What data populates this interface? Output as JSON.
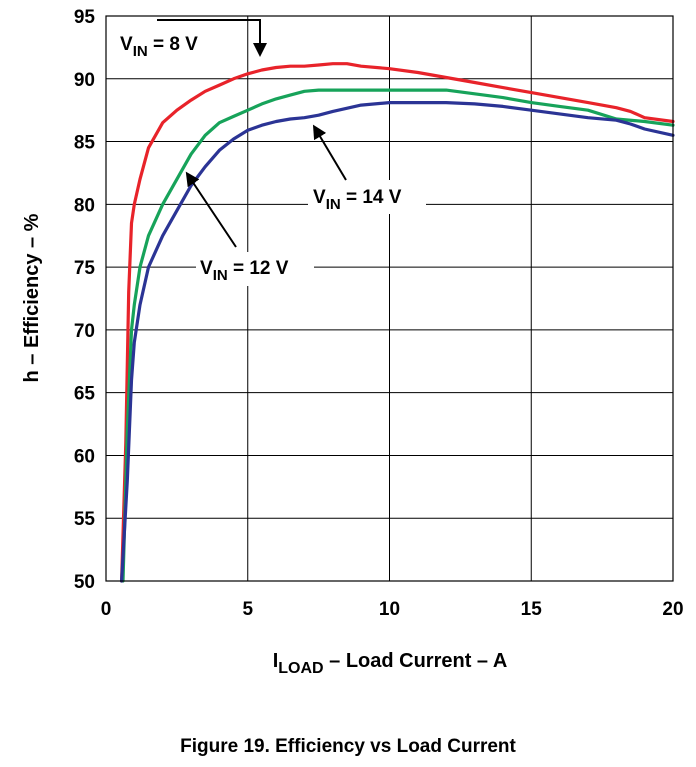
{
  "caption": "Figure 19. Efficiency vs Load Current",
  "chart_data": {
    "type": "line",
    "title": "Efficiency vs Load Current",
    "xlabel": {
      "main": "I",
      "sub": "LOAD",
      "rest": " – Load Current – A"
    },
    "ylabel": "h – Efficiency – %",
    "xlim": [
      0,
      20
    ],
    "ylim": [
      50,
      95
    ],
    "xticks": [
      0,
      5,
      10,
      15,
      20
    ],
    "yticks": [
      50,
      55,
      60,
      65,
      70,
      75,
      80,
      85,
      90,
      95
    ],
    "grid": true,
    "series": [
      {
        "name": "VIN = 8 V",
        "color": "#e8232a",
        "x": [
          0.55,
          0.7,
          0.8,
          0.9,
          1.0,
          1.2,
          1.5,
          2.0,
          2.5,
          3.0,
          3.5,
          4.0,
          4.5,
          5.0,
          5.5,
          6.0,
          6.5,
          7.0,
          7.5,
          8.0,
          8.5,
          9.0,
          10.0,
          11.0,
          12.0,
          13.0,
          14.0,
          15.0,
          16.0,
          17.0,
          18.0,
          18.5,
          19.0,
          20.0
        ],
        "y": [
          50,
          61,
          73,
          78.5,
          80,
          82,
          84.5,
          86.5,
          87.5,
          88.3,
          89,
          89.5,
          90,
          90.4,
          90.7,
          90.9,
          91,
          91,
          91.1,
          91.2,
          91.2,
          91,
          90.8,
          90.5,
          90.1,
          89.7,
          89.3,
          88.9,
          88.5,
          88.1,
          87.7,
          87.4,
          86.9,
          86.6
        ]
      },
      {
        "name": "VIN = 12 V",
        "color": "#17a35a",
        "x": [
          0.6,
          0.75,
          0.9,
          1.0,
          1.2,
          1.5,
          2.0,
          2.5,
          3.0,
          3.5,
          4.0,
          4.5,
          5.0,
          5.5,
          6.0,
          6.5,
          7.0,
          7.5,
          8.0,
          9.0,
          10.0,
          11.0,
          12.0,
          13.0,
          14.0,
          15.0,
          16.0,
          17.0,
          18.0,
          19.0,
          20.0
        ],
        "y": [
          50,
          62,
          70,
          72,
          75,
          77.5,
          80,
          82,
          84,
          85.5,
          86.5,
          87,
          87.5,
          88,
          88.4,
          88.7,
          89,
          89.1,
          89.1,
          89.1,
          89.1,
          89.1,
          89.1,
          88.8,
          88.5,
          88.1,
          87.8,
          87.5,
          86.8,
          86.6,
          86.3
        ]
      },
      {
        "name": "VIN = 14 V",
        "color": "#2b3495",
        "x": [
          0.55,
          0.75,
          0.9,
          1.0,
          1.2,
          1.5,
          2.0,
          2.5,
          3.0,
          3.5,
          4.0,
          4.5,
          5.0,
          5.5,
          6.0,
          6.5,
          7.0,
          7.5,
          8.0,
          9.0,
          10.0,
          11.0,
          12.0,
          13.0,
          14.0,
          15.0,
          16.0,
          17.0,
          18.0,
          18.5,
          19.0,
          20.0
        ],
        "y": [
          50,
          58,
          66,
          69,
          72,
          75,
          77.5,
          79.5,
          81.5,
          83,
          84.3,
          85.2,
          85.9,
          86.3,
          86.6,
          86.8,
          86.9,
          87.1,
          87.4,
          87.9,
          88.1,
          88.1,
          88.1,
          88,
          87.8,
          87.5,
          87.2,
          86.9,
          86.7,
          86.4,
          86,
          85.5
        ]
      }
    ],
    "annotations": [
      {
        "main": "V",
        "sub": "IN",
        "rest": " = 8 V",
        "series": "VIN = 8 V"
      },
      {
        "main": "V",
        "sub": "IN",
        "rest": " = 14 V",
        "series": "VIN = 14 V"
      },
      {
        "main": "V",
        "sub": "IN",
        "rest": " = 12 V",
        "series": "VIN = 12 V"
      }
    ]
  }
}
